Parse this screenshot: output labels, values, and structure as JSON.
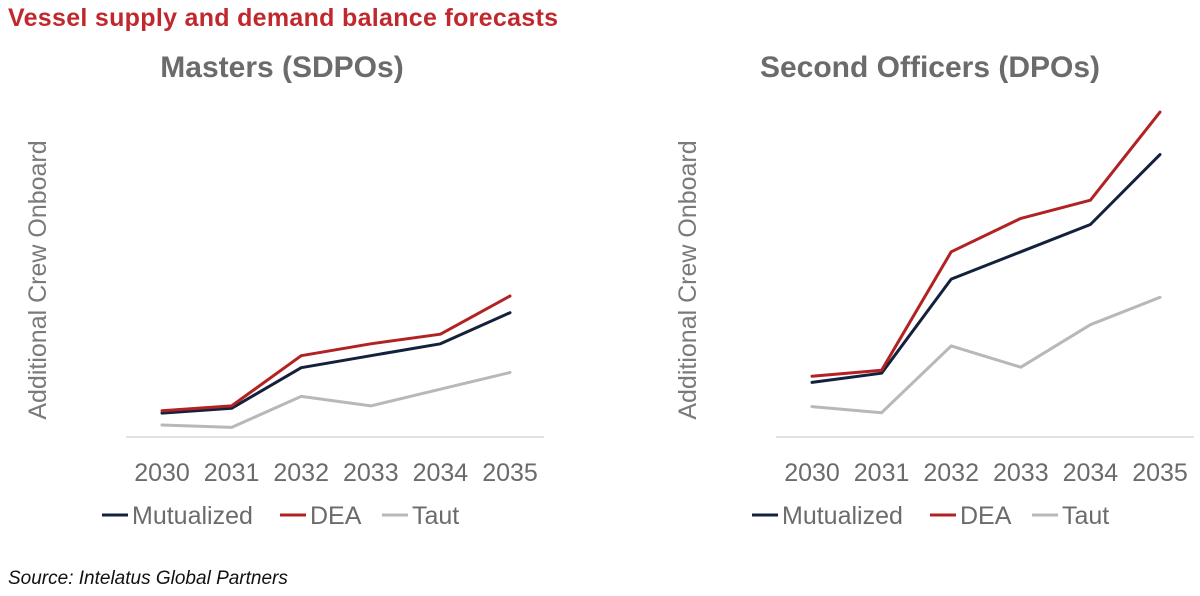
{
  "title": "Vessel supply and demand balance forecasts",
  "source": "Source: Intelatus Global Partners",
  "colors": {
    "Mutualized": "#14213d",
    "DEA": "#b22222",
    "Taut": "#b8b8b8"
  },
  "chart_data": [
    {
      "type": "line",
      "title": "Masters (SDPOs)",
      "ylabel": "Additional Crew Onboard",
      "xlabel": "",
      "categories": [
        "2030",
        "2031",
        "2032",
        "2033",
        "2034",
        "2035"
      ],
      "series": [
        {
          "name": "Mutualized",
          "values": [
            9,
            11,
            28,
            33,
            38,
            51
          ]
        },
        {
          "name": "DEA",
          "values": [
            10,
            12,
            33,
            38,
            42,
            58
          ]
        },
        {
          "name": "Taut",
          "values": [
            4,
            3,
            16,
            12,
            19,
            26
          ]
        }
      ],
      "ylim": [
        -1,
        140
      ],
      "legend": "bottom",
      "grid": false
    },
    {
      "type": "line",
      "title": "Second Officers (DPOs)",
      "ylabel": "Additional Crew Onboard",
      "xlabel": "",
      "categories": [
        "2030",
        "2031",
        "2032",
        "2033",
        "2034",
        "2035"
      ],
      "series": [
        {
          "name": "Mutualized",
          "values": [
            17,
            20,
            51,
            60,
            69,
            92
          ]
        },
        {
          "name": "DEA",
          "values": [
            19,
            21,
            60,
            71,
            77,
            106
          ]
        },
        {
          "name": "Taut",
          "values": [
            9,
            7,
            29,
            22,
            36,
            45
          ]
        }
      ],
      "ylim": [
        -1,
        110
      ],
      "legend": "bottom",
      "grid": false
    }
  ]
}
